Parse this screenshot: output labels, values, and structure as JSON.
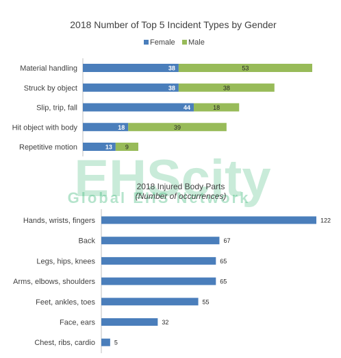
{
  "colors": {
    "female": "#4a7ebb",
    "male": "#98bb59",
    "bar2": "#4a7ebb",
    "axis": "#bfbfbf",
    "text": "#404040",
    "watermark": "#3cb878"
  },
  "watermark": {
    "main": "EHScity",
    "sub": "Global EHS Network"
  },
  "chart_data": [
    {
      "type": "bar",
      "orientation": "horizontal",
      "stacked": true,
      "title": "2018 Number of Top 5 Incident Types by Gender",
      "legend_position": "top",
      "categories": [
        "Material handling",
        "Struck by object",
        "Slip, trip, fall",
        "Hit object with body",
        "Repetitive motion"
      ],
      "series": [
        {
          "name": "Female",
          "values": [
            38,
            38,
            44,
            18,
            13
          ]
        },
        {
          "name": "Male",
          "values": [
            53,
            38,
            18,
            39,
            9
          ]
        }
      ],
      "grid": false
    },
    {
      "type": "bar",
      "orientation": "horizontal",
      "title": "2018 Injured Body Parts",
      "subtitle": "(Number of occurrences)",
      "categories": [
        "Hands, wrists, fingers",
        "Back",
        "Legs, hips, knees",
        "Arms, elbows, shoulders",
        "Feet, ankles, toes",
        "Face, ears",
        "Chest, ribs, cardio"
      ],
      "values": [
        122,
        67,
        65,
        65,
        55,
        32,
        5
      ],
      "grid": false
    }
  ]
}
